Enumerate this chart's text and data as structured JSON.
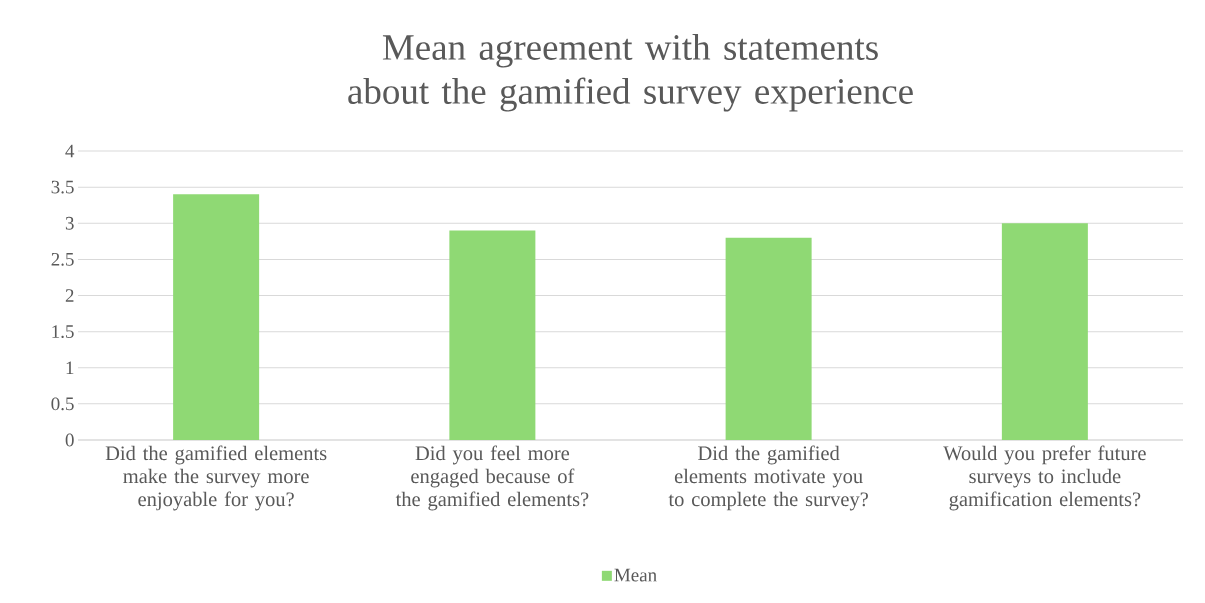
{
  "chart_data": {
    "type": "bar",
    "title": "Mean agreement with statements about the gamified survey experience",
    "categories": [
      "Did the gamified elements make the survey more enjoyable for you?",
      "Did you feel more engaged because of the gamified elements?",
      "Did the gamified elements motivate you to complete the survey?",
      "Would you prefer future surveys to include gamification elements?"
    ],
    "series": [
      {
        "name": "Mean",
        "color": "#8fd974",
        "values": [
          3.4,
          2.9,
          2.8,
          3.0
        ]
      }
    ],
    "ylim": [
      0,
      4
    ],
    "yticks": [
      0,
      0.5,
      1,
      1.5,
      2,
      2.5,
      3,
      3.5,
      4
    ],
    "grid": "y",
    "legend": "bottom"
  }
}
